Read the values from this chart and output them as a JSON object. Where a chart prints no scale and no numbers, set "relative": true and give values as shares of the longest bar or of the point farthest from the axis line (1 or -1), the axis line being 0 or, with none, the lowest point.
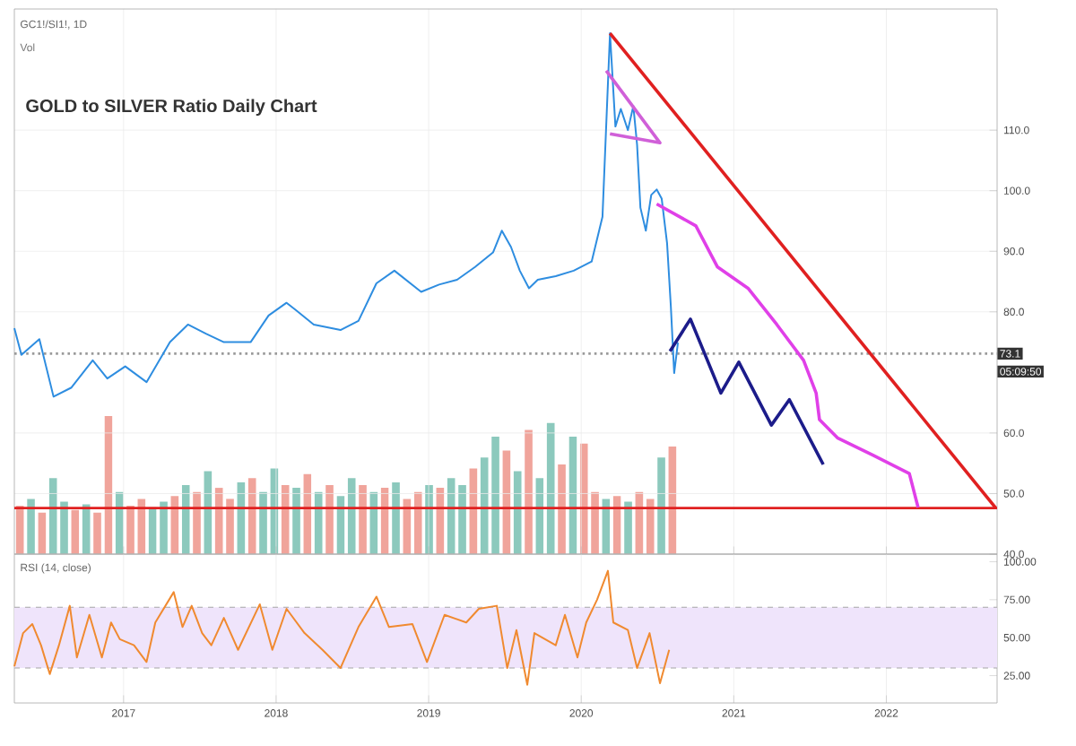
{
  "chart_data": [
    {
      "type": "line",
      "title": "GOLD to SILVER Ratio Daily Chart",
      "subtitle": "GC1!/SI1!, 1D",
      "annotations": [
        "05:09:50"
      ],
      "xlim": [
        "2016-04-14",
        "2022-09-23"
      ],
      "xticks": [
        "2017",
        "2018",
        "2019",
        "2020",
        "2021",
        "2022"
      ],
      "ylim": [
        40,
        130
      ],
      "yticks": [
        {
          "value": 40,
          "label": "40.0"
        },
        {
          "value": 50,
          "label": "50.0"
        },
        {
          "value": 60,
          "label": "60.0"
        },
        {
          "value": 80,
          "label": "80.0"
        },
        {
          "value": 90,
          "label": "90.0"
        },
        {
          "value": 100,
          "label": "100.0"
        },
        {
          "value": 110,
          "label": "110.0"
        }
      ],
      "tick_labels": "y",
      "grid": true,
      "marker": "none",
      "line_style": "solid",
      "ref_lines": [
        {
          "axis": "y",
          "value": 73.1,
          "label": "73.1",
          "color": "#9a9a9a",
          "line_style": "dotted"
        },
        {
          "axis": "y",
          "value": 47.6,
          "color": "#e02020",
          "line_style": "solid"
        }
      ],
      "series": [
        {
          "color": "#2e8de0",
          "x": [
            "2016-04-14",
            "2016-05-01",
            "2016-06-13",
            "2016-07-17",
            "2016-08-29",
            "2016-10-19",
            "2016-11-23",
            "2017-01-05",
            "2017-02-25",
            "2017-04-22",
            "2017-06-04",
            "2017-07-17",
            "2017-08-29",
            "2017-11-01",
            "2017-12-14",
            "2018-01-26",
            "2018-02-17",
            "2018-04-01",
            "2018-06-04",
            "2018-07-17",
            "2018-08-29",
            "2018-10-11",
            "2018-12-14",
            "2019-01-26",
            "2019-03-10",
            "2019-04-22",
            "2019-06-04",
            "2019-06-25",
            "2019-07-17",
            "2019-08-07",
            "2019-08-29",
            "2019-09-19",
            "2019-11-01",
            "2019-12-14",
            "2020-01-26",
            "2020-02-21",
            "2020-03-10",
            "2020-03-23",
            "2020-04-05",
            "2020-04-22",
            "2020-05-05",
            "2020-05-14",
            "2020-05-22",
            "2020-06-04",
            "2020-06-17",
            "2020-06-30",
            "2020-07-12",
            "2020-07-25",
            "2020-08-03",
            "2020-08-11",
            "2020-08-20"
          ],
          "values": [
            77.3,
            72.9,
            75.5,
            66,
            67.5,
            72,
            69,
            71,
            68.4,
            75,
            77.9,
            76.4,
            75,
            75,
            79.4,
            81.5,
            80.3,
            77.9,
            77,
            78.5,
            84.7,
            86.8,
            83.3,
            84.5,
            85.3,
            87.4,
            89.8,
            93.4,
            90.7,
            86.8,
            83.9,
            85.3,
            85.9,
            86.8,
            88.3,
            95.7,
            126,
            110.6,
            113.5,
            110,
            114,
            107.6,
            97.2,
            93.4,
            99.3,
            100.2,
            98.7,
            91.3,
            80.9,
            69.9,
            74.9
          ]
        },
        {
          "color": "#1c1c8a",
          "x": [
            "2020-08-01",
            "2020-09-19",
            "2020-12-01",
            "2021-01-13",
            "2021-04-01",
            "2021-05-14",
            "2021-08-03"
          ],
          "values": [
            73.5,
            78.8,
            66.6,
            71.7,
            61.3,
            65.5,
            54.8
          ]
        },
        {
          "color": "#e040e8",
          "x": [
            "2020-06-30",
            "2020-10-02",
            "2020-11-23",
            "2021-02-04",
            "2021-04-14",
            "2021-06-17",
            "2021-07-17",
            "2021-07-25",
            "2021-09-06",
            "2021-12-01",
            "2022-02-25",
            "2022-03-18"
          ],
          "values": [
            97.8,
            94.2,
            87.4,
            83.9,
            77.9,
            72,
            66.6,
            62.2,
            59.2,
            56.3,
            53.3,
            47.7
          ]
        },
        {
          "color": "#e02020",
          "x": [
            "2020-03-10",
            "2022-09-20"
          ],
          "values": [
            126,
            47.6
          ]
        },
        {
          "color": "#d060d8",
          "x": [
            "2020-03-01",
            "2020-07-08",
            "2020-03-10"
          ],
          "values": [
            119.8,
            107.9,
            109.4
          ]
        }
      ]
    },
    {
      "type": "bar",
      "title": "Vol",
      "relative": true,
      "categories": [
        null,
        null,
        null,
        null,
        null,
        null,
        null,
        null,
        null,
        null,
        null,
        null,
        null,
        null,
        null,
        null,
        null,
        null,
        null,
        null,
        null,
        null,
        null,
        null,
        null,
        null,
        null,
        null,
        null,
        null,
        null,
        null,
        null,
        null,
        null,
        null,
        null,
        null,
        null,
        null,
        null,
        null,
        null,
        null,
        null,
        null,
        null,
        null,
        null,
        null,
        null,
        null,
        null,
        null,
        null,
        null,
        null,
        null,
        null,
        null
      ],
      "values": [
        0.35,
        0.4,
        0.3,
        0.55,
        0.38,
        0.32,
        0.36,
        0.3,
        1.0,
        0.45,
        0.35,
        0.4,
        0.34,
        0.38,
        0.42,
        0.5,
        0.45,
        0.6,
        0.48,
        0.4,
        0.52,
        0.55,
        0.45,
        0.62,
        0.5,
        0.48,
        0.58,
        0.45,
        0.5,
        0.42,
        0.55,
        0.5,
        0.45,
        0.48,
        0.52,
        0.4,
        0.45,
        0.5,
        0.48,
        0.55,
        0.5,
        0.62,
        0.7,
        0.85,
        0.75,
        0.6,
        0.9,
        0.55,
        0.95,
        0.65,
        0.85,
        0.8,
        0.45,
        0.4,
        0.42,
        0.38,
        0.45,
        0.4,
        0.7,
        0.78
      ],
      "colors": [
        "#f0a49b",
        "#8cc9bd",
        "#f0a49b",
        "#8cc9bd",
        "#8cc9bd",
        "#f0a49b",
        "#8cc9bd",
        "#f0a49b",
        "#f0a49b",
        "#8cc9bd",
        "#f0a49b",
        "#f0a49b",
        "#8cc9bd",
        "#8cc9bd",
        "#f0a49b",
        "#8cc9bd",
        "#f0a49b",
        "#8cc9bd",
        "#f0a49b",
        "#f0a49b",
        "#8cc9bd",
        "#f0a49b",
        "#8cc9bd",
        "#8cc9bd",
        "#f0a49b",
        "#8cc9bd",
        "#f0a49b",
        "#8cc9bd",
        "#f0a49b",
        "#8cc9bd",
        "#8cc9bd",
        "#f0a49b",
        "#8cc9bd",
        "#f0a49b",
        "#8cc9bd",
        "#f0a49b",
        "#f0a49b",
        "#8cc9bd",
        "#f0a49b",
        "#8cc9bd",
        "#8cc9bd",
        "#f0a49b",
        "#8cc9bd",
        "#8cc9bd",
        "#f0a49b",
        "#8cc9bd",
        "#f0a49b",
        "#8cc9bd",
        "#8cc9bd",
        "#f0a49b",
        "#8cc9bd",
        "#f0a49b",
        "#f0a49b",
        "#8cc9bd",
        "#f0a49b",
        "#8cc9bd",
        "#f0a49b",
        "#f0a49b",
        "#8cc9bd",
        "#f0a49b"
      ]
    },
    {
      "type": "line",
      "title": "RSI (14, close)",
      "xlim": [
        "2016-04-14",
        "2022-09-23"
      ],
      "xticks": [
        "2017",
        "2018",
        "2019",
        "2020",
        "2021",
        "2022"
      ],
      "ylim": [
        7,
        105
      ],
      "yticks": [
        {
          "value": 25,
          "label": "25.00"
        },
        {
          "value": 50,
          "label": "50.00"
        },
        {
          "value": 75,
          "label": "75.00"
        },
        {
          "value": 100,
          "label": "100.00"
        }
      ],
      "grid": "x",
      "marker": "none",
      "bands": [
        {
          "axis": "y",
          "from": 30,
          "to": 70,
          "color": "#efe4fb"
        }
      ],
      "ref_lines": [
        {
          "axis": "y",
          "value": 30,
          "color": "#a6a6a6",
          "line_style": "dashed"
        },
        {
          "axis": "y",
          "value": 70,
          "color": "#a6a6a6",
          "line_style": "dashed"
        }
      ],
      "series": [
        {
          "color": "#f08a30",
          "x": [
            "2016-04-14",
            "2016-05-05",
            "2016-05-27",
            "2016-06-17",
            "2016-07-08",
            "2016-07-30",
            "2016-08-25",
            "2016-09-11",
            "2016-10-11",
            "2016-11-10",
            "2016-12-02",
            "2016-12-23",
            "2017-01-26",
            "2017-02-25",
            "2017-03-18",
            "2017-05-01",
            "2017-05-22",
            "2017-06-13",
            "2017-07-08",
            "2017-07-30",
            "2017-08-29",
            "2017-10-02",
            "2017-11-23",
            "2017-12-23",
            "2018-01-26",
            "2018-03-10",
            "2018-04-22",
            "2018-06-04",
            "2018-07-17",
            "2018-08-29",
            "2018-09-28",
            "2018-11-23",
            "2018-12-28",
            "2019-02-08",
            "2019-04-01",
            "2019-05-01",
            "2019-06-13",
            "2019-07-08",
            "2019-07-30",
            "2019-08-25",
            "2019-09-11",
            "2019-11-01",
            "2019-11-23",
            "2019-12-23",
            "2020-01-13",
            "2020-02-08",
            "2020-03-05",
            "2020-03-18",
            "2020-04-22",
            "2020-05-14",
            "2020-06-13",
            "2020-07-08",
            "2020-07-30"
          ],
          "values": [
            31,
            53,
            59,
            45,
            26,
            45,
            71,
            37,
            65,
            37,
            60,
            49,
            45,
            34,
            60,
            80,
            57,
            71,
            53,
            45,
            63,
            42,
            72,
            42,
            69,
            53,
            42,
            30,
            57,
            77,
            57,
            59,
            34,
            65,
            60,
            69,
            71,
            30,
            55,
            19,
            53,
            45,
            65,
            37,
            60,
            75,
            94,
            60,
            55,
            30,
            53,
            20,
            42
          ]
        }
      ]
    }
  ]
}
